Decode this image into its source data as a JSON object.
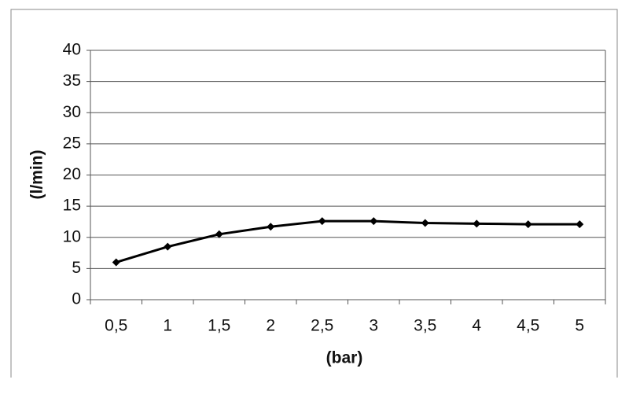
{
  "chart_data": {
    "type": "line",
    "categories": [
      "0,5",
      "1",
      "1,5",
      "2",
      "2,5",
      "3",
      "3,5",
      "4",
      "4,5",
      "5"
    ],
    "series": [
      {
        "color": "#000000",
        "values": [
          6,
          8.5,
          10.5,
          11.7,
          12.6,
          12.6,
          12.3,
          12.2,
          12.1,
          12.1
        ]
      }
    ],
    "ylim": [
      0,
      40
    ],
    "yticks": [
      0,
      5,
      10,
      15,
      20,
      25,
      30,
      35,
      40
    ],
    "y_label": "(l/min)",
    "x_label": "(bar)",
    "grid": true
  }
}
